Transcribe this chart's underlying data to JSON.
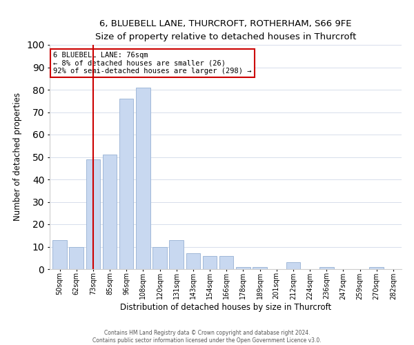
{
  "title": "6, BLUEBELL LANE, THURCROFT, ROTHERHAM, S66 9FE",
  "subtitle": "Size of property relative to detached houses in Thurcroft",
  "xlabel": "Distribution of detached houses by size in Thurcroft",
  "ylabel": "Number of detached properties",
  "footer_lines": [
    "Contains HM Land Registry data © Crown copyright and database right 2024.",
    "Contains public sector information licensed under the Open Government Licence v3.0."
  ],
  "bin_labels": [
    "50sqm",
    "62sqm",
    "73sqm",
    "85sqm",
    "96sqm",
    "108sqm",
    "120sqm",
    "131sqm",
    "143sqm",
    "154sqm",
    "166sqm",
    "178sqm",
    "189sqm",
    "201sqm",
    "212sqm",
    "224sqm",
    "236sqm",
    "247sqm",
    "259sqm",
    "270sqm",
    "282sqm"
  ],
  "bar_heights": [
    13,
    10,
    49,
    51,
    76,
    81,
    10,
    13,
    7,
    6,
    6,
    1,
    1,
    0,
    3,
    0,
    1,
    0,
    0,
    1,
    0
  ],
  "bar_color": "#c8d8f0",
  "bar_edge_color": "#a0b8d8",
  "vline_x_index": 2,
  "vline_color": "#cc0000",
  "annotation_title": "6 BLUEBELL LANE: 76sqm",
  "annotation_line1": "← 8% of detached houses are smaller (26)",
  "annotation_line2": "92% of semi-detached houses are larger (298) →",
  "annotation_box_color": "#ffffff",
  "annotation_box_edge": "#cc0000",
  "ylim": [
    0,
    100
  ],
  "yticks": [
    0,
    10,
    20,
    30,
    40,
    50,
    60,
    70,
    80,
    90,
    100
  ]
}
